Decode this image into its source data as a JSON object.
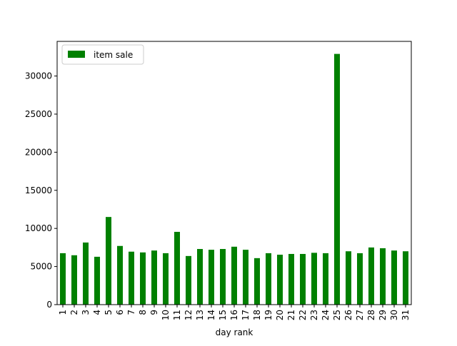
{
  "chart_data": {
    "type": "bar",
    "title": "",
    "xlabel": "day rank",
    "ylabel": "",
    "categories": [
      "1",
      "2",
      "3",
      "4",
      "5",
      "6",
      "7",
      "8",
      "9",
      "10",
      "11",
      "12",
      "13",
      "14",
      "15",
      "16",
      "17",
      "18",
      "19",
      "20",
      "21",
      "22",
      "23",
      "24",
      "25",
      "26",
      "27",
      "28",
      "29",
      "30",
      "31"
    ],
    "series": [
      {
        "name": "item sale",
        "color": "#008000",
        "values": [
          6750,
          6480,
          8150,
          6280,
          11500,
          7700,
          6950,
          6850,
          7100,
          6750,
          9550,
          6380,
          7300,
          7200,
          7300,
          7600,
          7200,
          6100,
          6750,
          6550,
          6650,
          6650,
          6800,
          6750,
          32900,
          7000,
          6750,
          7500,
          7400,
          7100,
          7000
        ]
      }
    ],
    "ylim": [
      0,
      34545
    ],
    "yticks": [
      0,
      5000,
      10000,
      15000,
      20000,
      25000,
      30000
    ],
    "legend": {
      "position": "top-left",
      "entries": [
        "item sale"
      ]
    },
    "grid": false
  }
}
